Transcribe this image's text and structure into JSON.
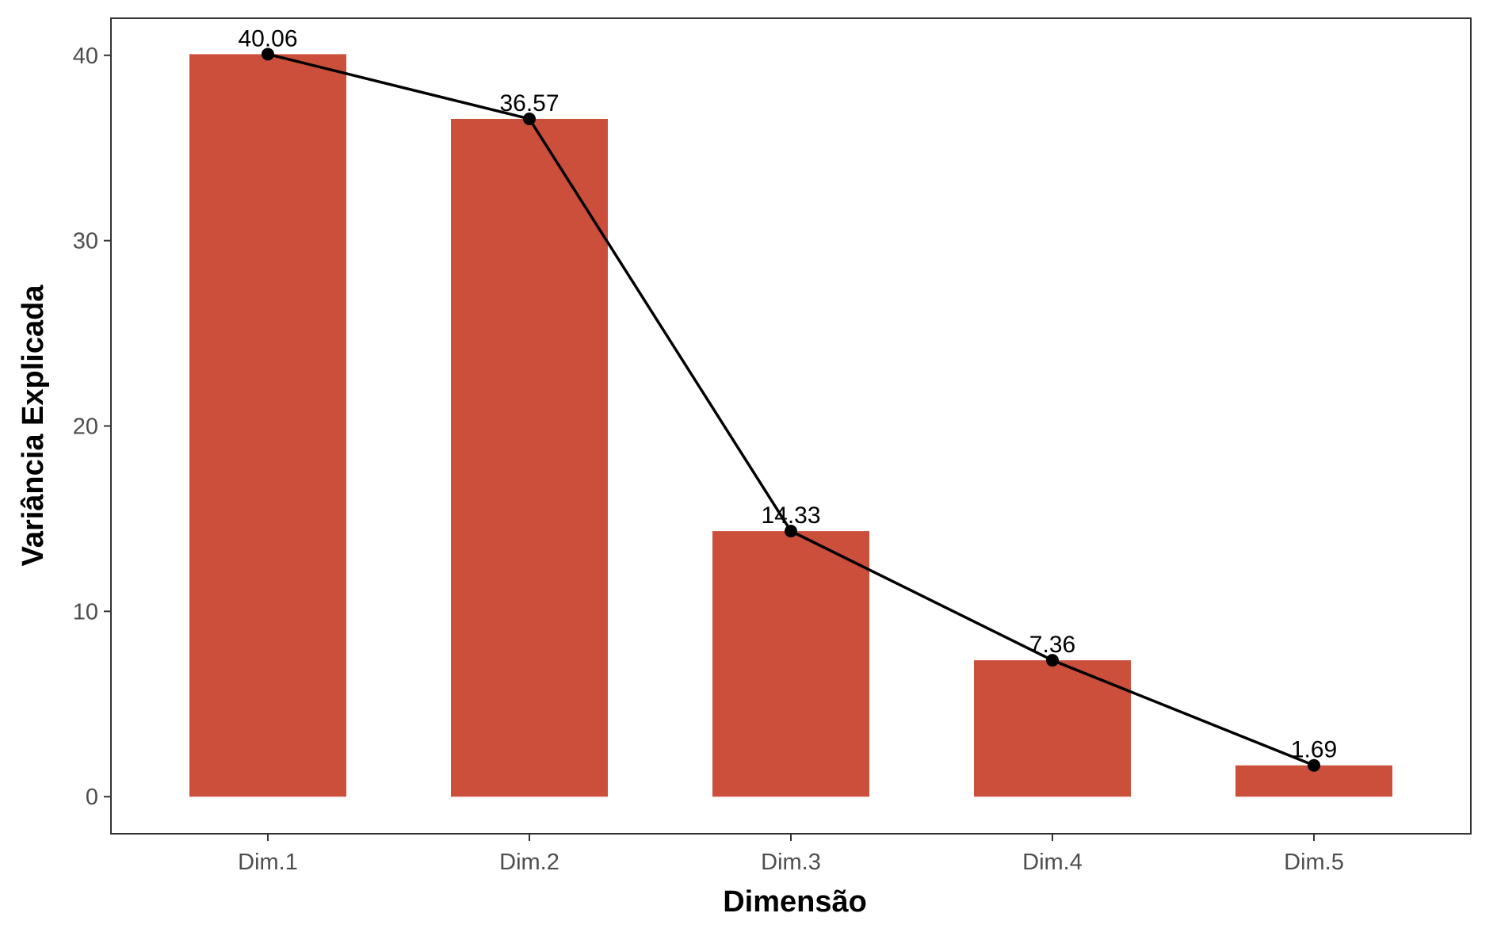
{
  "chart_data": {
    "type": "bar",
    "categories": [
      "Dim.1",
      "Dim.2",
      "Dim.3",
      "Dim.4",
      "Dim.5"
    ],
    "values": [
      40.06,
      36.57,
      14.33,
      7.36,
      1.69
    ],
    "data_labels": [
      "40.06",
      "36.57",
      "14.33",
      "7.36",
      "1.69"
    ],
    "overlay": "line-with-points",
    "xlabel": "Dimensão",
    "ylabel": "Variância Explicada",
    "ylim": [
      -2,
      42
    ],
    "yticks": [
      0,
      10,
      20,
      30,
      40
    ],
    "grid": false,
    "legend": "none",
    "bar_color": "#cb4f3b",
    "line_color": "#000000"
  }
}
